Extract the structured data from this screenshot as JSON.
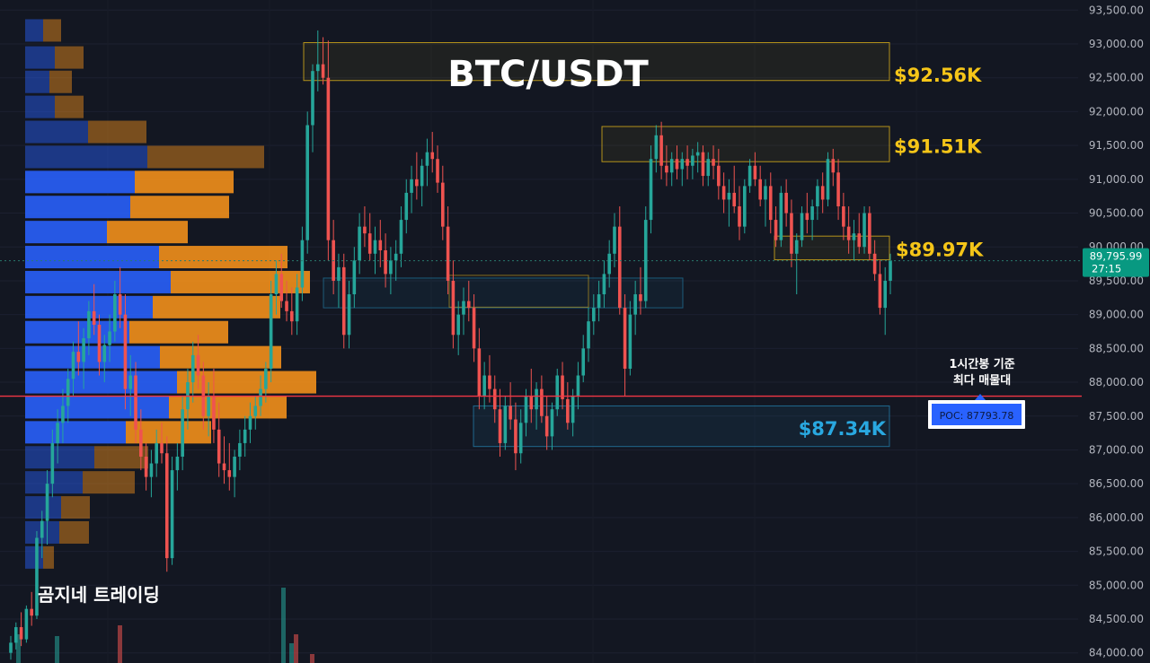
{
  "chart_data": {
    "type": "candlestick",
    "title": "BTC/USDT",
    "watermark": "곰지네 트레이딩",
    "y_axis": {
      "ticks": [
        84000,
        84500,
        85000,
        85500,
        86000,
        86500,
        87000,
        87500,
        88000,
        88500,
        89000,
        89500,
        90000,
        90500,
        91000,
        91500,
        92000,
        92500,
        93000,
        93500
      ],
      "tick_labels": [
        "84,000.00",
        "84,500.00",
        "85,000.00",
        "85,500.00",
        "86,000.00",
        "86,500.00",
        "87,000.00",
        "87,500.00",
        "88,000.00",
        "88,500.00",
        "89,000.00",
        "89,500.00",
        "90,000.00",
        "90,500.00",
        "91,000.00",
        "91,500.00",
        "92,000.00",
        "92,500.00",
        "93,000.00",
        "93,500.00"
      ],
      "range": [
        83850,
        93650
      ],
      "side": "right"
    },
    "current_price": {
      "value": 89795.99,
      "label": "89,795.99",
      "countdown": "27:15",
      "color": "#089981"
    },
    "poc": {
      "value": 87793.78,
      "label": "POC: 87793.78",
      "note_line1": "1시간봉 기준",
      "note_line2": "최다 매물대",
      "color": "#f23645"
    },
    "zones": [
      {
        "label": "$92.56K",
        "low": 92460,
        "high": 93020,
        "color": "#f5c518",
        "kind": "resistance"
      },
      {
        "label": "$91.51K",
        "low": 91260,
        "high": 91780,
        "color": "#f5c518",
        "kind": "resistance"
      },
      {
        "label": "$89.97K",
        "low": 89810,
        "high": 90160,
        "color": "#f5c518",
        "kind": "resistance"
      },
      {
        "label": "$87.34K",
        "low": 87050,
        "high": 87650,
        "color": "#29a8e0",
        "kind": "support"
      }
    ],
    "candles": [
      [
        84000,
        84250,
        83900,
        84150
      ],
      [
        84150,
        84450,
        84050,
        84380
      ],
      [
        84380,
        84600,
        84100,
        84200
      ],
      [
        84200,
        84700,
        84150,
        84650
      ],
      [
        84650,
        84900,
        84400,
        84550
      ],
      [
        84550,
        85800,
        84500,
        85700
      ],
      [
        85700,
        86100,
        85400,
        85950
      ],
      [
        85950,
        86700,
        85600,
        86500
      ],
      [
        86500,
        87300,
        86300,
        87100
      ],
      [
        87100,
        87600,
        86800,
        87400
      ],
      [
        87400,
        87900,
        87100,
        87650
      ],
      [
        87650,
        88200,
        87400,
        88050
      ],
      [
        88050,
        88600,
        87800,
        88450
      ],
      [
        88450,
        88900,
        88100,
        88300
      ],
      [
        88300,
        88800,
        87900,
        88650
      ],
      [
        88650,
        89200,
        88400,
        89050
      ],
      [
        89050,
        89450,
        88700,
        88850
      ],
      [
        88850,
        89000,
        88100,
        88300
      ],
      [
        88300,
        88700,
        88000,
        88550
      ],
      [
        88550,
        89000,
        88300,
        88750
      ],
      [
        88750,
        89500,
        88600,
        89300
      ],
      [
        89300,
        89700,
        88800,
        89000
      ],
      [
        89000,
        89300,
        87600,
        87900
      ],
      [
        87900,
        88400,
        87500,
        88100
      ],
      [
        88100,
        88300,
        87100,
        87300
      ],
      [
        87300,
        87600,
        86700,
        86900
      ],
      [
        86900,
        87100,
        86400,
        86600
      ],
      [
        86600,
        87000,
        86300,
        86800
      ],
      [
        86800,
        87300,
        86600,
        87100
      ],
      [
        87100,
        87400,
        86800,
        86950
      ],
      [
        86950,
        87200,
        85200,
        85400
      ],
      [
        85400,
        86900,
        85300,
        86700
      ],
      [
        86700,
        87100,
        86400,
        86900
      ],
      [
        86900,
        87800,
        86700,
        87600
      ],
      [
        87600,
        88200,
        87300,
        88000
      ],
      [
        88000,
        88600,
        87700,
        88400
      ],
      [
        88400,
        88700,
        87900,
        88100
      ],
      [
        88100,
        88300,
        87300,
        87500
      ],
      [
        87500,
        88000,
        87200,
        87800
      ],
      [
        87800,
        88200,
        87100,
        87300
      ],
      [
        87300,
        87700,
        86600,
        86800
      ],
      [
        86800,
        87200,
        86500,
        86700
      ],
      [
        86700,
        87100,
        86400,
        86600
      ],
      [
        86600,
        87000,
        86300,
        86900
      ],
      [
        86900,
        87300,
        86700,
        87100
      ],
      [
        87100,
        87500,
        86900,
        87300
      ],
      [
        87300,
        87700,
        87100,
        87500
      ],
      [
        87500,
        87800,
        87300,
        87650
      ],
      [
        87650,
        88100,
        87500,
        87900
      ],
      [
        87900,
        88300,
        87700,
        88200
      ],
      [
        88200,
        89500,
        88000,
        89300
      ],
      [
        89300,
        89800,
        89000,
        89600
      ],
      [
        89600,
        89900,
        89100,
        89200
      ],
      [
        89200,
        89500,
        88900,
        89050
      ],
      [
        89050,
        89400,
        88700,
        88900
      ],
      [
        88900,
        89600,
        88700,
        89400
      ],
      [
        89400,
        90300,
        89200,
        90100
      ],
      [
        90100,
        92000,
        89900,
        91800
      ],
      [
        91800,
        92700,
        91400,
        92600
      ],
      [
        92600,
        93200,
        92300,
        92700
      ],
      [
        92700,
        93100,
        92400,
        92500
      ],
      [
        92500,
        93050,
        89800,
        90100
      ],
      [
        90100,
        90400,
        89300,
        89500
      ],
      [
        89500,
        89900,
        89100,
        89700
      ],
      [
        89700,
        89900,
        88500,
        88700
      ],
      [
        88700,
        89500,
        88500,
        89300
      ],
      [
        89300,
        90000,
        89100,
        89800
      ],
      [
        89800,
        90500,
        89600,
        90300
      ],
      [
        90300,
        90600,
        90000,
        90200
      ],
      [
        90200,
        90500,
        89800,
        89900
      ],
      [
        89900,
        90300,
        89600,
        90100
      ],
      [
        90100,
        90400,
        89700,
        89950
      ],
      [
        89950,
        90200,
        89400,
        89600
      ],
      [
        89600,
        90000,
        89300,
        89800
      ],
      [
        89800,
        90100,
        89500,
        89900
      ],
      [
        89900,
        90600,
        89700,
        90400
      ],
      [
        90400,
        91000,
        90200,
        90800
      ],
      [
        90800,
        91200,
        90500,
        91000
      ],
      [
        91000,
        91400,
        90700,
        90900
      ],
      [
        90900,
        91300,
        90600,
        91200
      ],
      [
        91200,
        91600,
        90900,
        91400
      ],
      [
        91400,
        91700,
        91100,
        91300
      ],
      [
        91300,
        91500,
        90800,
        90950
      ],
      [
        90950,
        91200,
        90100,
        90300
      ],
      [
        90300,
        90600,
        89300,
        89500
      ],
      [
        89500,
        89800,
        88500,
        88700
      ],
      [
        88700,
        89200,
        88400,
        89000
      ],
      [
        89000,
        89400,
        88700,
        89200
      ],
      [
        89200,
        89500,
        88900,
        89100
      ],
      [
        89100,
        89300,
        88300,
        88500
      ],
      [
        88500,
        88800,
        87600,
        87800
      ],
      [
        87800,
        88300,
        87600,
        88100
      ],
      [
        88100,
        88400,
        87700,
        87900
      ],
      [
        87900,
        88100,
        87400,
        87600
      ],
      [
        87600,
        87900,
        86900,
        87100
      ],
      [
        87100,
        87800,
        87000,
        87650
      ],
      [
        87650,
        88000,
        87300,
        87450
      ],
      [
        87450,
        87700,
        86700,
        86950
      ],
      [
        86950,
        87600,
        86800,
        87400
      ],
      [
        87400,
        87900,
        87200,
        87800
      ],
      [
        87800,
        88200,
        87400,
        87600
      ],
      [
        87600,
        88000,
        87300,
        87900
      ],
      [
        87900,
        88100,
        87400,
        87500
      ],
      [
        87500,
        87800,
        87000,
        87200
      ],
      [
        87200,
        87700,
        87000,
        87600
      ],
      [
        87600,
        88200,
        87500,
        88100
      ],
      [
        88100,
        88300,
        87600,
        87750
      ],
      [
        87750,
        88000,
        87300,
        87400
      ],
      [
        87400,
        87900,
        87200,
        87800
      ],
      [
        87800,
        88300,
        87600,
        88100
      ],
      [
        88100,
        88700,
        88000,
        88500
      ],
      [
        88500,
        89100,
        88300,
        88900
      ],
      [
        88900,
        89300,
        88700,
        89100
      ],
      [
        89100,
        89500,
        88900,
        89300
      ],
      [
        89300,
        89800,
        89100,
        89600
      ],
      [
        89600,
        90100,
        89400,
        89900
      ],
      [
        89900,
        90500,
        89700,
        90300
      ],
      [
        90300,
        90600,
        89000,
        89100
      ],
      [
        89100,
        89300,
        87800,
        88200
      ],
      [
        88200,
        89200,
        88100,
        89000
      ],
      [
        89000,
        89500,
        88700,
        89300
      ],
      [
        89300,
        89700,
        89000,
        89200
      ],
      [
        89200,
        90600,
        89100,
        90400
      ],
      [
        90400,
        91500,
        90200,
        91300
      ],
      [
        91300,
        91800,
        91100,
        91650
      ],
      [
        91650,
        91850,
        91000,
        91200
      ],
      [
        91200,
        91500,
        90900,
        91100
      ],
      [
        91100,
        91400,
        90900,
        91300
      ],
      [
        91300,
        91500,
        91000,
        91150
      ],
      [
        91150,
        91400,
        90900,
        91300
      ],
      [
        91300,
        91500,
        91000,
        91200
      ],
      [
        91200,
        91450,
        91000,
        91350
      ],
      [
        91350,
        91550,
        91100,
        91400
      ],
      [
        91400,
        91500,
        90900,
        91050
      ],
      [
        91050,
        91400,
        90900,
        91300
      ],
      [
        91300,
        91500,
        91000,
        91200
      ],
      [
        91200,
        91450,
        90700,
        90900
      ],
      [
        90900,
        91100,
        90500,
        90700
      ],
      [
        90700,
        91000,
        90300,
        90800
      ],
      [
        90800,
        91200,
        90500,
        90600
      ],
      [
        90600,
        90900,
        90100,
        90300
      ],
      [
        90300,
        91000,
        90200,
        90900
      ],
      [
        90900,
        91300,
        90800,
        91200
      ],
      [
        91200,
        91400,
        90900,
        91000
      ],
      [
        91000,
        91200,
        90600,
        90700
      ],
      [
        90700,
        91000,
        90300,
        90900
      ],
      [
        90900,
        91100,
        90200,
        90400
      ],
      [
        90400,
        90600,
        90000,
        90100
      ],
      [
        90100,
        90900,
        90000,
        90800
      ],
      [
        90800,
        91000,
        90300,
        90500
      ],
      [
        90500,
        90700,
        89700,
        89900
      ],
      [
        89900,
        90200,
        89300,
        90100
      ],
      [
        90100,
        90600,
        90000,
        90500
      ],
      [
        90500,
        90800,
        90200,
        90400
      ],
      [
        90400,
        90700,
        90100,
        90600
      ],
      [
        90600,
        91000,
        90400,
        90900
      ],
      [
        90900,
        91100,
        90500,
        90700
      ],
      [
        90700,
        91400,
        90600,
        91300
      ],
      [
        91300,
        91450,
        90900,
        91100
      ],
      [
        91100,
        91300,
        90400,
        90600
      ],
      [
        90600,
        90800,
        90100,
        90300
      ],
      [
        90300,
        90600,
        89900,
        90100
      ],
      [
        90100,
        90400,
        89800,
        90200
      ],
      [
        90200,
        90500,
        89900,
        90000
      ],
      [
        90000,
        90600,
        89900,
        90500
      ],
      [
        90500,
        90600,
        89800,
        89900
      ],
      [
        89900,
        90100,
        89500,
        89600
      ],
      [
        89600,
        89800,
        89000,
        89100
      ],
      [
        89100,
        89700,
        88700,
        89500
      ],
      [
        89500,
        89900,
        89300,
        89800
      ]
    ],
    "volume_profile": [
      {
        "price": 93200,
        "buy": 20,
        "sell": 20
      },
      {
        "price": 92800,
        "buy": 33,
        "sell": 32
      },
      {
        "price": 92440,
        "buy": 27,
        "sell": 25
      },
      {
        "price": 92070,
        "buy": 33,
        "sell": 32
      },
      {
        "price": 91700,
        "buy": 70,
        "sell": 65
      },
      {
        "price": 91330,
        "buy": 136,
        "sell": 130
      },
      {
        "price": 90960,
        "buy": 122,
        "sell": 110
      },
      {
        "price": 90590,
        "buy": 117,
        "sell": 110
      },
      {
        "price": 90220,
        "buy": 91,
        "sell": 90
      },
      {
        "price": 89850,
        "buy": 149,
        "sell": 143
      },
      {
        "price": 89480,
        "buy": 162,
        "sell": 155
      },
      {
        "price": 89110,
        "buy": 142,
        "sell": 142
      },
      {
        "price": 88740,
        "buy": 116,
        "sell": 110
      },
      {
        "price": 88370,
        "buy": 150,
        "sell": 135
      },
      {
        "price": 88000,
        "buy": 169,
        "sell": 155
      },
      {
        "price": 87630,
        "buy": 160,
        "sell": 131
      },
      {
        "price": 87260,
        "buy": 112,
        "sell": 95
      },
      {
        "price": 86890,
        "buy": 77,
        "sell": 60
      },
      {
        "price": 86520,
        "buy": 64,
        "sell": 58
      },
      {
        "price": 86150,
        "buy": 40,
        "sell": 32
      },
      {
        "price": 85780,
        "buy": 38,
        "sell": 33
      },
      {
        "price": 85410,
        "buy": 20,
        "sell": 12
      }
    ],
    "volume_bars": [
      {
        "x": 18,
        "h": 32,
        "up": true
      },
      {
        "x": 61,
        "h": 30,
        "up": true
      },
      {
        "x": 131,
        "h": 42,
        "up": false
      },
      {
        "x": 313,
        "h": 84,
        "up": true
      },
      {
        "x": 322,
        "h": 22,
        "up": true
      },
      {
        "x": 327,
        "h": 32,
        "up": false
      },
      {
        "x": 345,
        "h": 10,
        "up": false
      }
    ],
    "colors": {
      "background": "#131722",
      "up": "#26a69a",
      "down": "#ef5350",
      "vp_buy": "#2962ff",
      "vp_sell": "#f7931a",
      "zone_yellow": "#f5c518",
      "zone_blue": "#29a8e0"
    }
  }
}
